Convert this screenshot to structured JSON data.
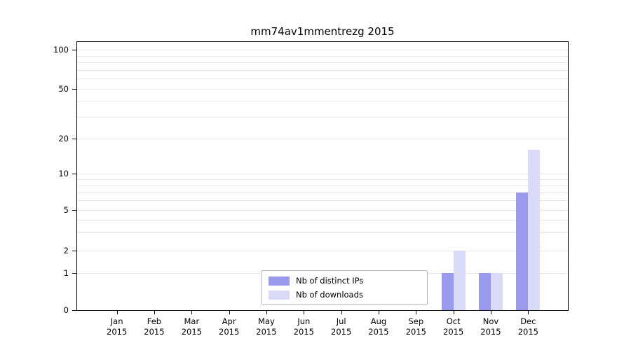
{
  "chart_data": {
    "type": "bar",
    "title": "mm74av1mmentrezg 2015",
    "year_label": "2015",
    "categories": [
      "Jan",
      "Feb",
      "Mar",
      "Apr",
      "May",
      "Jun",
      "Jul",
      "Aug",
      "Sep",
      "Oct",
      "Nov",
      "Dec"
    ],
    "series": [
      {
        "name": "Nb of distinct IPs",
        "color": "#9999ee",
        "values": [
          0,
          0,
          0,
          0,
          0,
          0,
          0,
          0,
          0,
          1,
          1,
          7
        ]
      },
      {
        "name": "Nb of downloads",
        "color": "#d9d9f8",
        "values": [
          0,
          0,
          0,
          0,
          0,
          0,
          0,
          0,
          0,
          2,
          1,
          16
        ]
      }
    ],
    "y_ticks": [
      0,
      1,
      2,
      5,
      10,
      20,
      50,
      100
    ],
    "minor_gridlines": [
      1,
      2,
      3,
      4,
      5,
      6,
      7,
      8,
      9,
      10,
      20,
      30,
      40,
      50,
      60,
      70,
      80,
      90,
      100
    ],
    "ylim": [
      0,
      100
    ],
    "scale": "log-like with zero baseline",
    "grid": true,
    "legend": {
      "position": "inside-bottom-center",
      "border_color": "#b3b3b3"
    }
  }
}
